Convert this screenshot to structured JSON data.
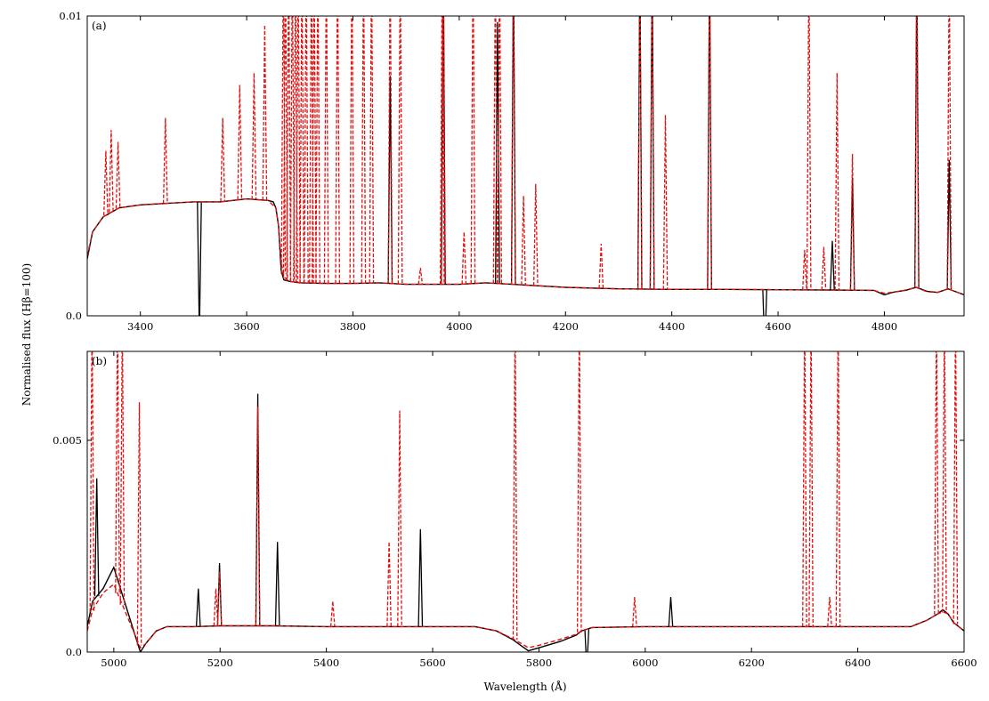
{
  "figure": {
    "ylabel": "Normalised flux (Hβ=100)",
    "xlabel": "Wavelength (Å)"
  },
  "colors": {
    "observed": "#000000",
    "model": "#e01010"
  },
  "chart_data": [
    {
      "type": "line",
      "panel_label": "(a)",
      "xlim": [
        3300,
        4950
      ],
      "ylim": [
        0.0,
        0.01
      ],
      "x_ticks": [
        3400,
        3600,
        3800,
        4000,
        4200,
        4400,
        4600,
        4800
      ],
      "x_tick_labels": [
        "3400",
        "3600",
        "3800",
        "4000",
        "4200",
        "4400",
        "4600",
        "4800"
      ],
      "y_ticks": [
        0.0,
        0.01
      ],
      "y_tick_labels": [
        "0.0",
        "0.01"
      ],
      "series": [
        {
          "style": "solid",
          "x": [
            3300,
            3310,
            3330,
            3360,
            3400,
            3450,
            3500,
            3550,
            3600,
            3640,
            3650,
            3655,
            3660,
            3665,
            3670,
            3680,
            3700,
            3750,
            3800,
            3850,
            3900,
            3950,
            4000,
            4050,
            4100,
            4150,
            4200,
            4300,
            4400,
            4500,
            4600,
            4700,
            4780,
            4800,
            4820,
            4840,
            4860,
            4880,
            4900,
            4920,
            4950
          ],
          "y": [
            0.0019,
            0.0028,
            0.0033,
            0.0036,
            0.0037,
            0.00375,
            0.0038,
            0.0038,
            0.0039,
            0.00385,
            0.0038,
            0.0036,
            0.003,
            0.0015,
            0.0012,
            0.00115,
            0.0011,
            0.00108,
            0.00108,
            0.0011,
            0.00105,
            0.00105,
            0.00105,
            0.0011,
            0.00105,
            0.001,
            0.00095,
            0.0009,
            0.00088,
            0.00088,
            0.00087,
            0.00086,
            0.00085,
            0.0007,
            0.0008,
            0.00085,
            0.00095,
            0.00082,
            0.00078,
            0.0009,
            0.0007
          ],
          "lines": [
            [
              3511,
              -0.0007
            ],
            [
              3870,
              0.008
            ],
            [
              3970,
              0.012
            ],
            [
              4072,
              0.0098
            ],
            [
              4102,
              0.012
            ],
            [
              4340,
              0.012
            ],
            [
              4363,
              0.012
            ],
            [
              4471,
              0.012
            ],
            [
              4575,
              -0.0012
            ],
            [
              4702,
              0.0025
            ],
            [
              4740,
              0.0046
            ],
            [
              4861,
              0.012
            ],
            [
              4922,
              0.0052
            ]
          ]
        },
        {
          "style": "dashed",
          "x": [
            3300,
            3310,
            3330,
            3360,
            3400,
            3450,
            3500,
            3550,
            3600,
            3640,
            3655,
            3660,
            3665,
            3670,
            3680,
            3700,
            3750,
            3800,
            3850,
            3900,
            3950,
            4000,
            4050,
            4100,
            4150,
            4200,
            4300,
            4400,
            4500,
            4600,
            4700,
            4780,
            4800,
            4830,
            4860,
            4880,
            4900,
            4920,
            4950
          ],
          "y": [
            0.002,
            0.0028,
            0.0033,
            0.0036,
            0.0037,
            0.00375,
            0.0038,
            0.0038,
            0.0039,
            0.00385,
            0.0036,
            0.003,
            0.0018,
            0.0013,
            0.00115,
            0.0011,
            0.00108,
            0.00108,
            0.0011,
            0.00105,
            0.00105,
            0.00105,
            0.0011,
            0.00105,
            0.001,
            0.00095,
            0.0009,
            0.00088,
            0.00088,
            0.00087,
            0.00086,
            0.00085,
            0.00075,
            0.00082,
            0.00095,
            0.0008,
            0.00078,
            0.0009,
            0.0007
          ],
          "lines": [
            [
              3335,
              0.0055
            ],
            [
              3345,
              0.0062
            ],
            [
              3358,
              0.0058
            ],
            [
              3447,
              0.0066
            ],
            [
              3555,
              0.0066
            ],
            [
              3587,
              0.0077
            ],
            [
              3614,
              0.0081
            ],
            [
              3634,
              0.0097
            ],
            [
              3669,
              0.012
            ],
            [
              3673,
              0.012
            ],
            [
              3679,
              0.012
            ],
            [
              3686,
              0.012
            ],
            [
              3692,
              0.012
            ],
            [
              3697,
              0.012
            ],
            [
              3704,
              0.012
            ],
            [
              3712,
              0.012
            ],
            [
              3722,
              0.012
            ],
            [
              3727,
              0.012
            ],
            [
              3734,
              0.012
            ],
            [
              3750,
              0.012
            ],
            [
              3771,
              0.012
            ],
            [
              3798,
              0.012
            ],
            [
              3820,
              0.012
            ],
            [
              3835,
              0.012
            ],
            [
              3870,
              0.012
            ],
            [
              3889,
              0.012
            ],
            [
              3927,
              0.0016
            ],
            [
              3968,
              0.012
            ],
            [
              3970,
              0.012
            ],
            [
              4009,
              0.0028
            ],
            [
              4026,
              0.012
            ],
            [
              4068,
              0.012
            ],
            [
              4076,
              0.012
            ],
            [
              4102,
              0.012
            ],
            [
              4121,
              0.004
            ],
            [
              4144,
              0.0044
            ],
            [
              4267,
              0.0024
            ],
            [
              4340,
              0.012
            ],
            [
              4363,
              0.012
            ],
            [
              4388,
              0.0067
            ],
            [
              4471,
              0.012
            ],
            [
              4650,
              0.0022
            ],
            [
              4658,
              0.012
            ],
            [
              4686,
              0.0023
            ],
            [
              4711,
              0.0081
            ],
            [
              4740,
              0.0054
            ],
            [
              4861,
              0.012
            ],
            [
              4922,
              0.012
            ]
          ]
        }
      ]
    },
    {
      "type": "line",
      "panel_label": "(b)",
      "xlim": [
        4950,
        6600
      ],
      "ylim": [
        0.0,
        0.0071
      ],
      "x_ticks": [
        5000,
        5200,
        5400,
        5600,
        5800,
        6000,
        6200,
        6400,
        6600
      ],
      "x_tick_labels": [
        "5000",
        "5200",
        "5400",
        "5600",
        "5800",
        "6000",
        "6200",
        "6400",
        "6600"
      ],
      "y_ticks": [
        0.0,
        0.005
      ],
      "y_tick_labels": [
        "0.0",
        "0.005"
      ],
      "series": [
        {
          "style": "solid",
          "x": [
            4950,
            4960,
            4980,
            5000,
            5020,
            5040,
            5050,
            5060,
            5080,
            5100,
            5150,
            5200,
            5300,
            5400,
            5500,
            5600,
            5680,
            5720,
            5750,
            5770,
            5780,
            5800,
            5840,
            5870,
            5880,
            5900,
            6000,
            6100,
            6200,
            6300,
            6400,
            6500,
            6530,
            6550,
            6560,
            6570,
            6580,
            6600
          ],
          "y": [
            0.0006,
            0.0012,
            0.0015,
            0.002,
            0.0012,
            0.0004,
            0.0,
            0.0002,
            0.0005,
            0.0006,
            0.0006,
            0.00062,
            0.00062,
            0.0006,
            0.0006,
            0.0006,
            0.0006,
            0.0005,
            0.0003,
            0.00012,
            3e-05,
            0.0001,
            0.00025,
            0.0004,
            0.0005,
            0.00058,
            0.0006,
            0.0006,
            0.0006,
            0.0006,
            0.0006,
            0.0006,
            0.00075,
            0.0009,
            0.001,
            0.0009,
            0.0007,
            0.0005
          ],
          "lines": [
            [
              4968,
              0.0041
            ],
            [
              5159,
              0.0015
            ],
            [
              5199,
              0.0021
            ],
            [
              5271,
              0.0061
            ],
            [
              5308,
              0.0026
            ],
            [
              5577,
              0.0029
            ],
            [
              5890,
              -0.0004
            ],
            [
              6048,
              0.0013
            ]
          ]
        },
        {
          "style": "dashed",
          "x": [
            4950,
            4960,
            4980,
            5000,
            5020,
            5040,
            5050,
            5060,
            5080,
            5100,
            5150,
            5200,
            5300,
            5400,
            5500,
            5600,
            5680,
            5720,
            5750,
            5770,
            5780,
            5800,
            5840,
            5870,
            5880,
            5900,
            6000,
            6100,
            6200,
            6300,
            6400,
            6500,
            6530,
            6550,
            6560,
            6570,
            6580,
            6600
          ],
          "y": [
            0.0005,
            0.001,
            0.0014,
            0.0016,
            0.001,
            0.0004,
            0.0001,
            0.0002,
            0.0005,
            0.0006,
            0.0006,
            0.00062,
            0.00062,
            0.0006,
            0.0006,
            0.0006,
            0.0006,
            0.0005,
            0.00032,
            0.00018,
            0.0001,
            0.00016,
            0.0003,
            0.00042,
            0.0005,
            0.00058,
            0.0006,
            0.0006,
            0.0006,
            0.0006,
            0.0006,
            0.0006,
            0.00075,
            0.0009,
            0.00095,
            0.0009,
            0.0007,
            0.0005
          ],
          "lines": [
            [
              4959,
              0.008
            ],
            [
              5007,
              0.008
            ],
            [
              5016,
              0.008
            ],
            [
              5048,
              0.0059
            ],
            [
              5192,
              0.0015
            ],
            [
              5199,
              0.0019
            ],
            [
              5271,
              0.0058
            ],
            [
              5412,
              0.0012
            ],
            [
              5518,
              0.0026
            ],
            [
              5538,
              0.0057
            ],
            [
              5755,
              0.008
            ],
            [
              5876,
              0.008
            ],
            [
              5980,
              0.0013
            ],
            [
              6300,
              0.008
            ],
            [
              6312,
              0.008
            ],
            [
              6347,
              0.0013
            ],
            [
              6363,
              0.008
            ],
            [
              6548,
              0.008
            ],
            [
              6563,
              0.008
            ],
            [
              6584,
              0.008
            ]
          ]
        }
      ]
    }
  ]
}
